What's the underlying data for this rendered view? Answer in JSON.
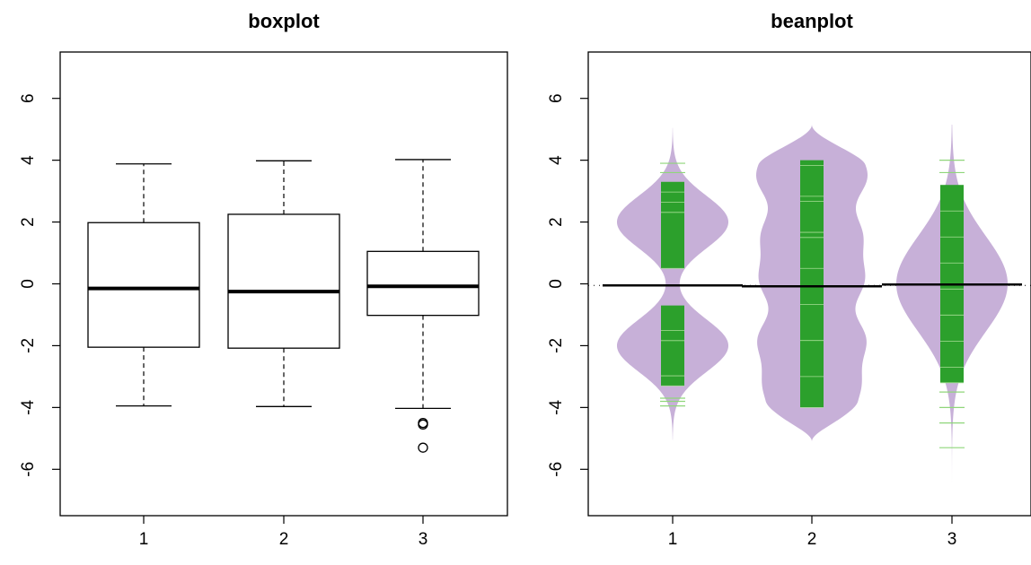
{
  "chart_data": [
    {
      "type": "boxplot",
      "title": "boxplot",
      "xlabel": "",
      "ylabel": "",
      "categories": [
        "1",
        "2",
        "3"
      ],
      "ylim": [
        -7.5,
        7.5
      ],
      "yticks": [
        "-6",
        "-4",
        "-2",
        "0",
        "2",
        "4",
        "6"
      ],
      "grid": false,
      "boxes": [
        {
          "lower_whisker": -3.95,
          "q1": -2.05,
          "median": -0.15,
          "q3": 1.98,
          "upper_whisker": 3.88,
          "outliers": []
        },
        {
          "lower_whisker": -3.97,
          "q1": -2.08,
          "median": -0.25,
          "q3": 2.25,
          "upper_whisker": 3.98,
          "outliers": []
        },
        {
          "lower_whisker": -4.03,
          "q1": -1.02,
          "median": -0.08,
          "q3": 1.05,
          "upper_whisker": 4.02,
          "outliers": [
            -4.5,
            -4.55,
            -5.3
          ]
        }
      ]
    },
    {
      "type": "beanplot",
      "title": "beanplot",
      "xlabel": "",
      "ylabel": "",
      "categories": [
        "1",
        "2",
        "3"
      ],
      "ylim": [
        -7.5,
        7.5
      ],
      "yticks": [
        "-6",
        "-4",
        "-2",
        "0",
        "2",
        "4",
        "6"
      ],
      "grid": false,
      "overall_mean": -0.05,
      "colors": {
        "bean": "#c7b0d8",
        "bean_line": "#2ca02c",
        "outer_line": "#8fd67a",
        "mean_line": "#000000"
      },
      "beans": [
        {
          "description": "bimodal",
          "min": -5.05,
          "max": 5.05,
          "mean": -0.05,
          "modes": [
            -2.0,
            2.0
          ],
          "line_range": [
            [
              -3.3,
              -0.7
            ],
            [
              0.5,
              3.3
            ]
          ],
          "extreme_lines": [
            -3.7,
            -3.8,
            -3.95,
            3.6,
            3.9
          ]
        },
        {
          "description": "uniform",
          "min": -5.1,
          "max": 5.15,
          "mean": -0.08,
          "modes": [],
          "line_range": [
            [
              -4.0,
              4.0
            ]
          ],
          "extreme_lines": []
        },
        {
          "description": "unimodal",
          "min": -6.45,
          "max": 5.15,
          "mean": -0.02,
          "modes": [
            0.0
          ],
          "line_range": [
            [
              -3.2,
              3.2
            ]
          ],
          "extreme_lines": [
            -3.5,
            -4.0,
            -4.5,
            -5.3,
            3.6,
            4.0
          ]
        }
      ]
    }
  ]
}
